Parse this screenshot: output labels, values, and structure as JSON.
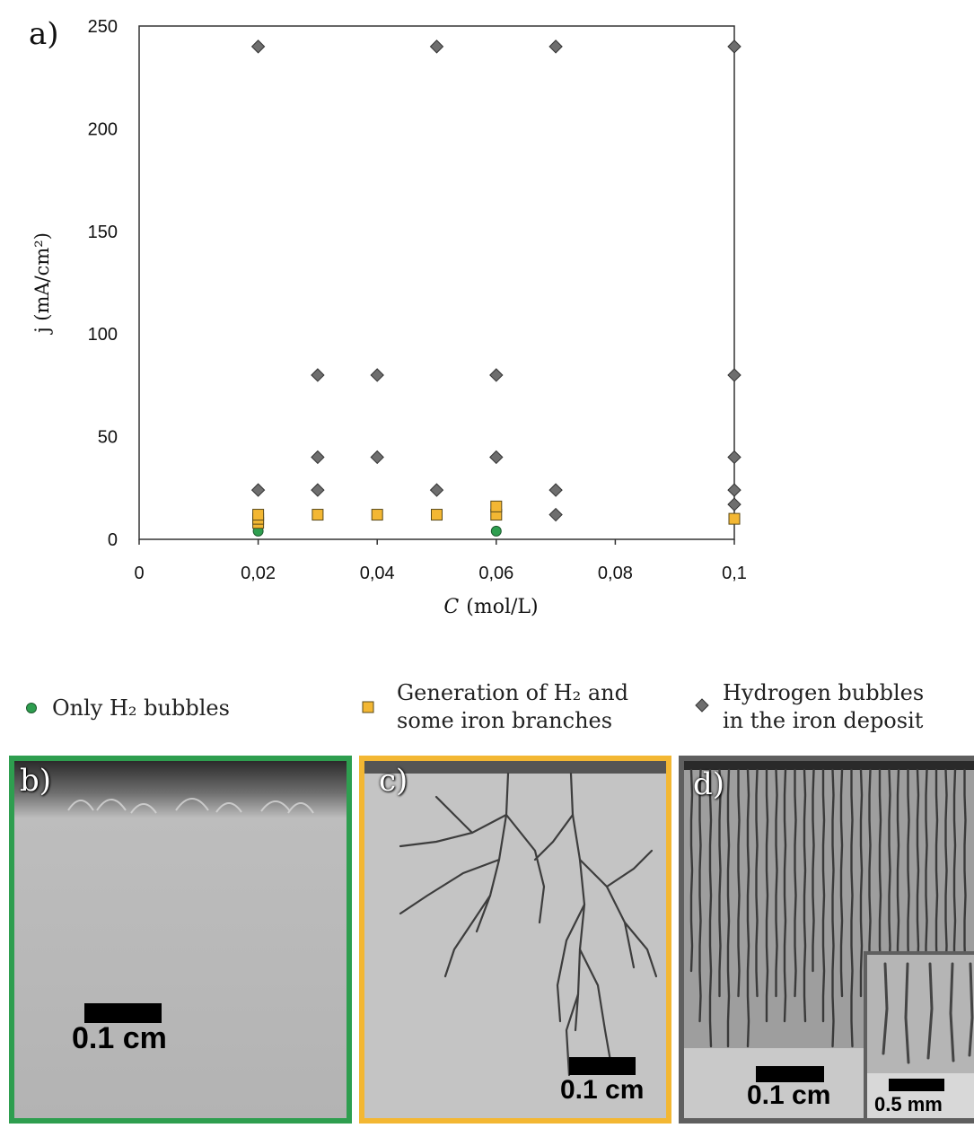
{
  "panel_a_label": "a)",
  "chart_data": {
    "type": "scatter",
    "title": "",
    "xlabel": "C (mol/L)",
    "xlabel_var": "C",
    "xlabel_unit": "(mol/L)",
    "ylabel": "j (mA/cm²)",
    "xlim": [
      0,
      0.1
    ],
    "ylim": [
      0,
      250
    ],
    "xticks": [
      "0",
      "0,02",
      "0,04",
      "0,06",
      "0,08",
      "0,1"
    ],
    "xtick_values": [
      0,
      0.02,
      0.04,
      0.06,
      0.08,
      0.1
    ],
    "yticks": [
      "0",
      "50",
      "100",
      "150",
      "200",
      "250"
    ],
    "ytick_values": [
      0,
      50,
      100,
      150,
      200,
      250
    ],
    "grid": false,
    "series": [
      {
        "name": "Only H₂ bubbles",
        "marker": "circle",
        "color": "#2e9e4f",
        "points": [
          [
            0.02,
            4
          ],
          [
            0.06,
            4
          ]
        ]
      },
      {
        "name": "Generation of H₂ and some iron branches",
        "marker": "square",
        "color": "#f3b733",
        "points": [
          [
            0.02,
            8
          ],
          [
            0.02,
            10
          ],
          [
            0.02,
            12
          ],
          [
            0.03,
            12
          ],
          [
            0.04,
            12
          ],
          [
            0.05,
            12
          ],
          [
            0.06,
            12
          ],
          [
            0.06,
            16
          ],
          [
            0.1,
            10
          ]
        ]
      },
      {
        "name": "Hydrogen bubbles in the iron deposit",
        "marker": "diamond",
        "color": "#6e6e6e",
        "points": [
          [
            0.02,
            24
          ],
          [
            0.02,
            240
          ],
          [
            0.03,
            24
          ],
          [
            0.03,
            40
          ],
          [
            0.03,
            80
          ],
          [
            0.04,
            40
          ],
          [
            0.04,
            80
          ],
          [
            0.05,
            24
          ],
          [
            0.05,
            240
          ],
          [
            0.06,
            40
          ],
          [
            0.06,
            80
          ],
          [
            0.07,
            12
          ],
          [
            0.07,
            24
          ],
          [
            0.07,
            240
          ],
          [
            0.1,
            17
          ],
          [
            0.1,
            24
          ],
          [
            0.1,
            40
          ],
          [
            0.1,
            80
          ],
          [
            0.1,
            240
          ]
        ]
      }
    ]
  },
  "legend": {
    "green_text": "Only H₂ bubbles",
    "yellow_line1": "Generation of H₂ and",
    "yellow_line2": "some iron branches",
    "grey_line1": "Hydrogen bubbles",
    "grey_line2": "in the iron deposit"
  },
  "photos": {
    "b": {
      "label": "b)",
      "scale": "0.1 cm",
      "border": "#2e9e4f"
    },
    "c": {
      "label": "c)",
      "scale": "0.1 cm",
      "border": "#f3b733"
    },
    "d": {
      "label": "d)",
      "scale": "0.1 cm",
      "inset_scale": "0.5 mm",
      "border": "#5f5f5f"
    }
  }
}
